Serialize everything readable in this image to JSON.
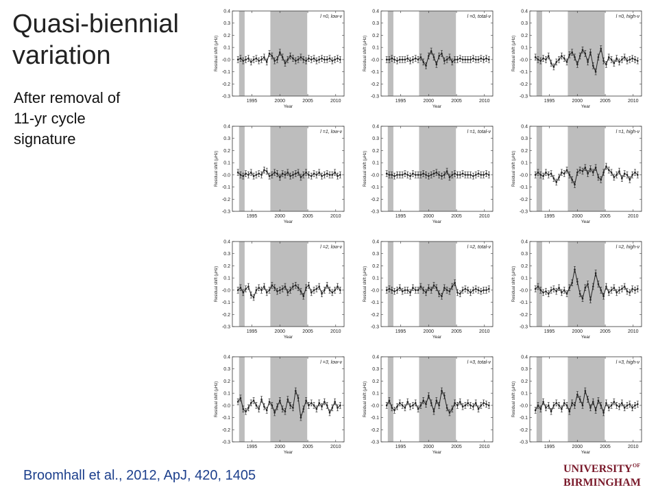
{
  "slide": {
    "title_line1": "Quasi-biennial",
    "title_line2": "variation",
    "subtitle_line1": "After removal of",
    "subtitle_line2": "11-yr cycle",
    "subtitle_line3": "signature",
    "citation": "Broomhall et al., 2012, ApJ, 420, 1405",
    "logo_line1": "UNIVERSITY",
    "logo_of": "OF",
    "logo_line2": "BIRMINGHAM",
    "colors": {
      "citation": "#1c3f8c",
      "logo": "#7a1a2b",
      "shade": "#bdbdbd",
      "data": "#222222"
    }
  },
  "chart_data": {
    "type": "line",
    "layout": "4x3 grid of panels",
    "xlabel": "Year",
    "ylabel": "Residual shift (μHz)",
    "xlim": [
      1991.5,
      2011.5
    ],
    "ylim": [
      -0.3,
      0.4
    ],
    "xticks": [
      1995,
      2000,
      2005,
      2010
    ],
    "yticks": [
      0.4,
      0.3,
      0.2,
      0.1,
      0.0,
      -0.1,
      -0.2,
      -0.3
    ],
    "ytick_labels": [
      "0.4",
      "0.3",
      "0.2",
      "0.1",
      "-0.0",
      "-0.1",
      "-0.2",
      "-0.3"
    ],
    "shaded_intervals": [
      [
        1992.7,
        1993.7
      ],
      [
        1998.3,
        2004.9
      ]
    ],
    "panels": [
      {
        "label": "l =0, low-ν",
        "values": [
          0.0,
          0.01,
          -0.01,
          0.0,
          0.01,
          -0.02,
          0.0,
          0.01,
          -0.01,
          0.0,
          0.02,
          -0.02,
          0.05,
          0.03,
          -0.01,
          0.0,
          0.06,
          0.02,
          -0.03,
          0.0,
          0.03,
          0.01,
          -0.01,
          0.0,
          0.02,
          0.0,
          -0.01,
          0.01,
          0.0,
          0.01,
          -0.01,
          0.0,
          0.01,
          0.0,
          0.0,
          0.01,
          -0.01,
          0.0,
          0.01,
          0.0
        ]
      },
      {
        "label": "l =0, total-ν",
        "values": [
          0.0,
          0.0,
          0.01,
          0.0,
          -0.01,
          0.0,
          0.0,
          0.0,
          0.01,
          -0.01,
          0.0,
          0.01,
          0.0,
          0.02,
          -0.02,
          -0.05,
          0.03,
          0.07,
          0.02,
          -0.04,
          0.03,
          0.05,
          -0.01,
          0.0,
          0.02,
          -0.02,
          0.0,
          0.0,
          0.01,
          0.0,
          0.0,
          0.0,
          0.0,
          0.01,
          0.0,
          0.0,
          0.01,
          0.0,
          0.01,
          0.0
        ]
      },
      {
        "label": "l =0, high-ν",
        "values": [
          0.02,
          0.0,
          -0.01,
          0.01,
          0.0,
          0.03,
          -0.03,
          -0.06,
          -0.02,
          0.0,
          0.03,
          0.01,
          -0.02,
          0.04,
          0.06,
          0.02,
          -0.04,
          0.03,
          0.08,
          0.05,
          -0.02,
          0.06,
          -0.05,
          -0.1,
          0.02,
          0.09,
          -0.01,
          -0.04,
          0.02,
          0.0,
          -0.03,
          0.01,
          -0.02,
          0.0,
          0.02,
          -0.01,
          0.0,
          0.01,
          0.0,
          -0.01
        ]
      },
      {
        "label": "l =1, low-ν",
        "values": [
          0.02,
          0.0,
          -0.01,
          0.01,
          0.0,
          0.02,
          -0.01,
          0.0,
          0.01,
          0.0,
          0.04,
          0.03,
          -0.01,
          0.0,
          0.02,
          0.01,
          -0.02,
          0.01,
          0.0,
          0.02,
          -0.01,
          0.0,
          0.01,
          0.02,
          -0.02,
          0.0,
          0.02,
          0.0,
          -0.01,
          0.01,
          0.0,
          0.02,
          -0.01,
          0.0,
          0.01,
          0.0,
          0.0,
          0.02,
          -0.01,
          0.0
        ]
      },
      {
        "label": "l =1, total-ν",
        "values": [
          0.01,
          0.0,
          0.0,
          -0.01,
          0.0,
          0.0,
          0.0,
          0.01,
          0.0,
          -0.01,
          0.01,
          0.0,
          0.0,
          0.0,
          0.01,
          0.0,
          -0.01,
          0.0,
          0.01,
          0.02,
          0.0,
          -0.01,
          0.0,
          0.03,
          -0.02,
          0.0,
          0.01,
          0.0,
          0.0,
          0.01,
          0.0,
          0.0,
          0.0,
          -0.01,
          0.0,
          0.01,
          0.0,
          0.0,
          0.01,
          0.0
        ]
      },
      {
        "label": "l =1, high-ν",
        "values": [
          0.0,
          0.02,
          0.0,
          -0.01,
          0.02,
          0.0,
          0.01,
          -0.03,
          -0.06,
          -0.02,
          0.02,
          0.01,
          0.04,
          0.0,
          -0.04,
          -0.08,
          0.02,
          0.04,
          0.03,
          0.06,
          0.01,
          0.05,
          0.02,
          0.06,
          -0.02,
          -0.04,
          0.02,
          0.07,
          0.04,
          0.02,
          -0.02,
          0.0,
          0.03,
          -0.03,
          0.01,
          0.0,
          -0.04,
          0.0,
          0.02,
          0.0
        ]
      },
      {
        "label": "l =2, low-ν",
        "values": [
          0.0,
          0.02,
          -0.02,
          0.01,
          0.03,
          -0.04,
          -0.06,
          0.0,
          0.02,
          0.0,
          0.03,
          -0.02,
          0.0,
          0.04,
          0.02,
          -0.01,
          0.0,
          0.01,
          0.03,
          -0.02,
          0.0,
          0.03,
          0.04,
          0.02,
          -0.01,
          -0.05,
          0.02,
          0.04,
          -0.02,
          0.0,
          0.01,
          0.03,
          -0.03,
          0.0,
          0.04,
          0.0,
          -0.02,
          0.0,
          0.03,
          0.0
        ]
      },
      {
        "label": "l =2, total-ν",
        "values": [
          0.0,
          0.01,
          0.0,
          -0.01,
          0.0,
          0.02,
          -0.01,
          0.0,
          0.0,
          -0.02,
          0.02,
          0.0,
          0.0,
          0.03,
          0.0,
          -0.02,
          0.02,
          0.0,
          0.04,
          0.02,
          -0.03,
          -0.05,
          0.02,
          0.0,
          -0.01,
          0.03,
          0.06,
          -0.02,
          -0.03,
          0.0,
          0.01,
          0.0,
          -0.02,
          0.0,
          0.01,
          0.0,
          -0.01,
          0.0,
          0.0,
          0.01
        ]
      },
      {
        "label": "l =2, high-ν",
        "values": [
          0.01,
          0.03,
          0.0,
          -0.02,
          -0.01,
          -0.03,
          0.0,
          0.01,
          -0.01,
          0.02,
          -0.02,
          0.0,
          -0.03,
          0.02,
          0.06,
          0.17,
          0.07,
          -0.03,
          -0.07,
          0.02,
          0.05,
          -0.08,
          0.03,
          0.14,
          0.05,
          0.0,
          -0.05,
          0.03,
          -0.02,
          0.0,
          0.02,
          -0.02,
          0.0,
          0.01,
          0.03,
          -0.01,
          -0.02,
          0.01,
          0.0,
          0.01
        ]
      },
      {
        "label": "l =3, low-ν",
        "values": [
          0.03,
          0.06,
          -0.03,
          -0.05,
          -0.02,
          0.02,
          0.04,
          0.0,
          -0.03,
          0.05,
          -0.01,
          -0.04,
          0.03,
          0.0,
          -0.06,
          -0.01,
          0.04,
          -0.03,
          -0.05,
          0.05,
          0.0,
          -0.02,
          0.12,
          0.06,
          -0.1,
          -0.03,
          0.04,
          0.0,
          0.02,
          0.0,
          -0.03,
          0.02,
          -0.01,
          0.03,
          0.0,
          -0.06,
          -0.02,
          0.03,
          -0.02,
          0.0
        ]
      },
      {
        "label": "l =3, total-ν",
        "values": [
          0.0,
          0.04,
          -0.02,
          -0.04,
          -0.01,
          0.02,
          0.0,
          -0.02,
          0.03,
          -0.01,
          0.0,
          0.02,
          -0.03,
          0.0,
          0.04,
          0.01,
          0.08,
          0.02,
          -0.05,
          0.04,
          0.0,
          0.12,
          0.08,
          -0.02,
          -0.06,
          -0.03,
          0.02,
          0.0,
          0.03,
          -0.01,
          0.0,
          0.02,
          0.0,
          -0.01,
          0.02,
          -0.03,
          0.0,
          0.02,
          0.01,
          0.0
        ]
      },
      {
        "label": "l =3, high-ν",
        "values": [
          -0.04,
          0.0,
          -0.03,
          0.03,
          -0.02,
          0.0,
          -0.05,
          0.0,
          0.02,
          0.0,
          -0.03,
          0.02,
          0.0,
          -0.05,
          0.02,
          0.0,
          0.09,
          0.05,
          0.0,
          0.12,
          0.05,
          -0.02,
          0.03,
          -0.04,
          0.04,
          0.0,
          -0.06,
          0.02,
          -0.02,
          0.0,
          0.03,
          0.0,
          -0.01,
          0.02,
          -0.02,
          0.0,
          0.01,
          -0.02,
          0.0,
          0.01
        ]
      }
    ]
  }
}
